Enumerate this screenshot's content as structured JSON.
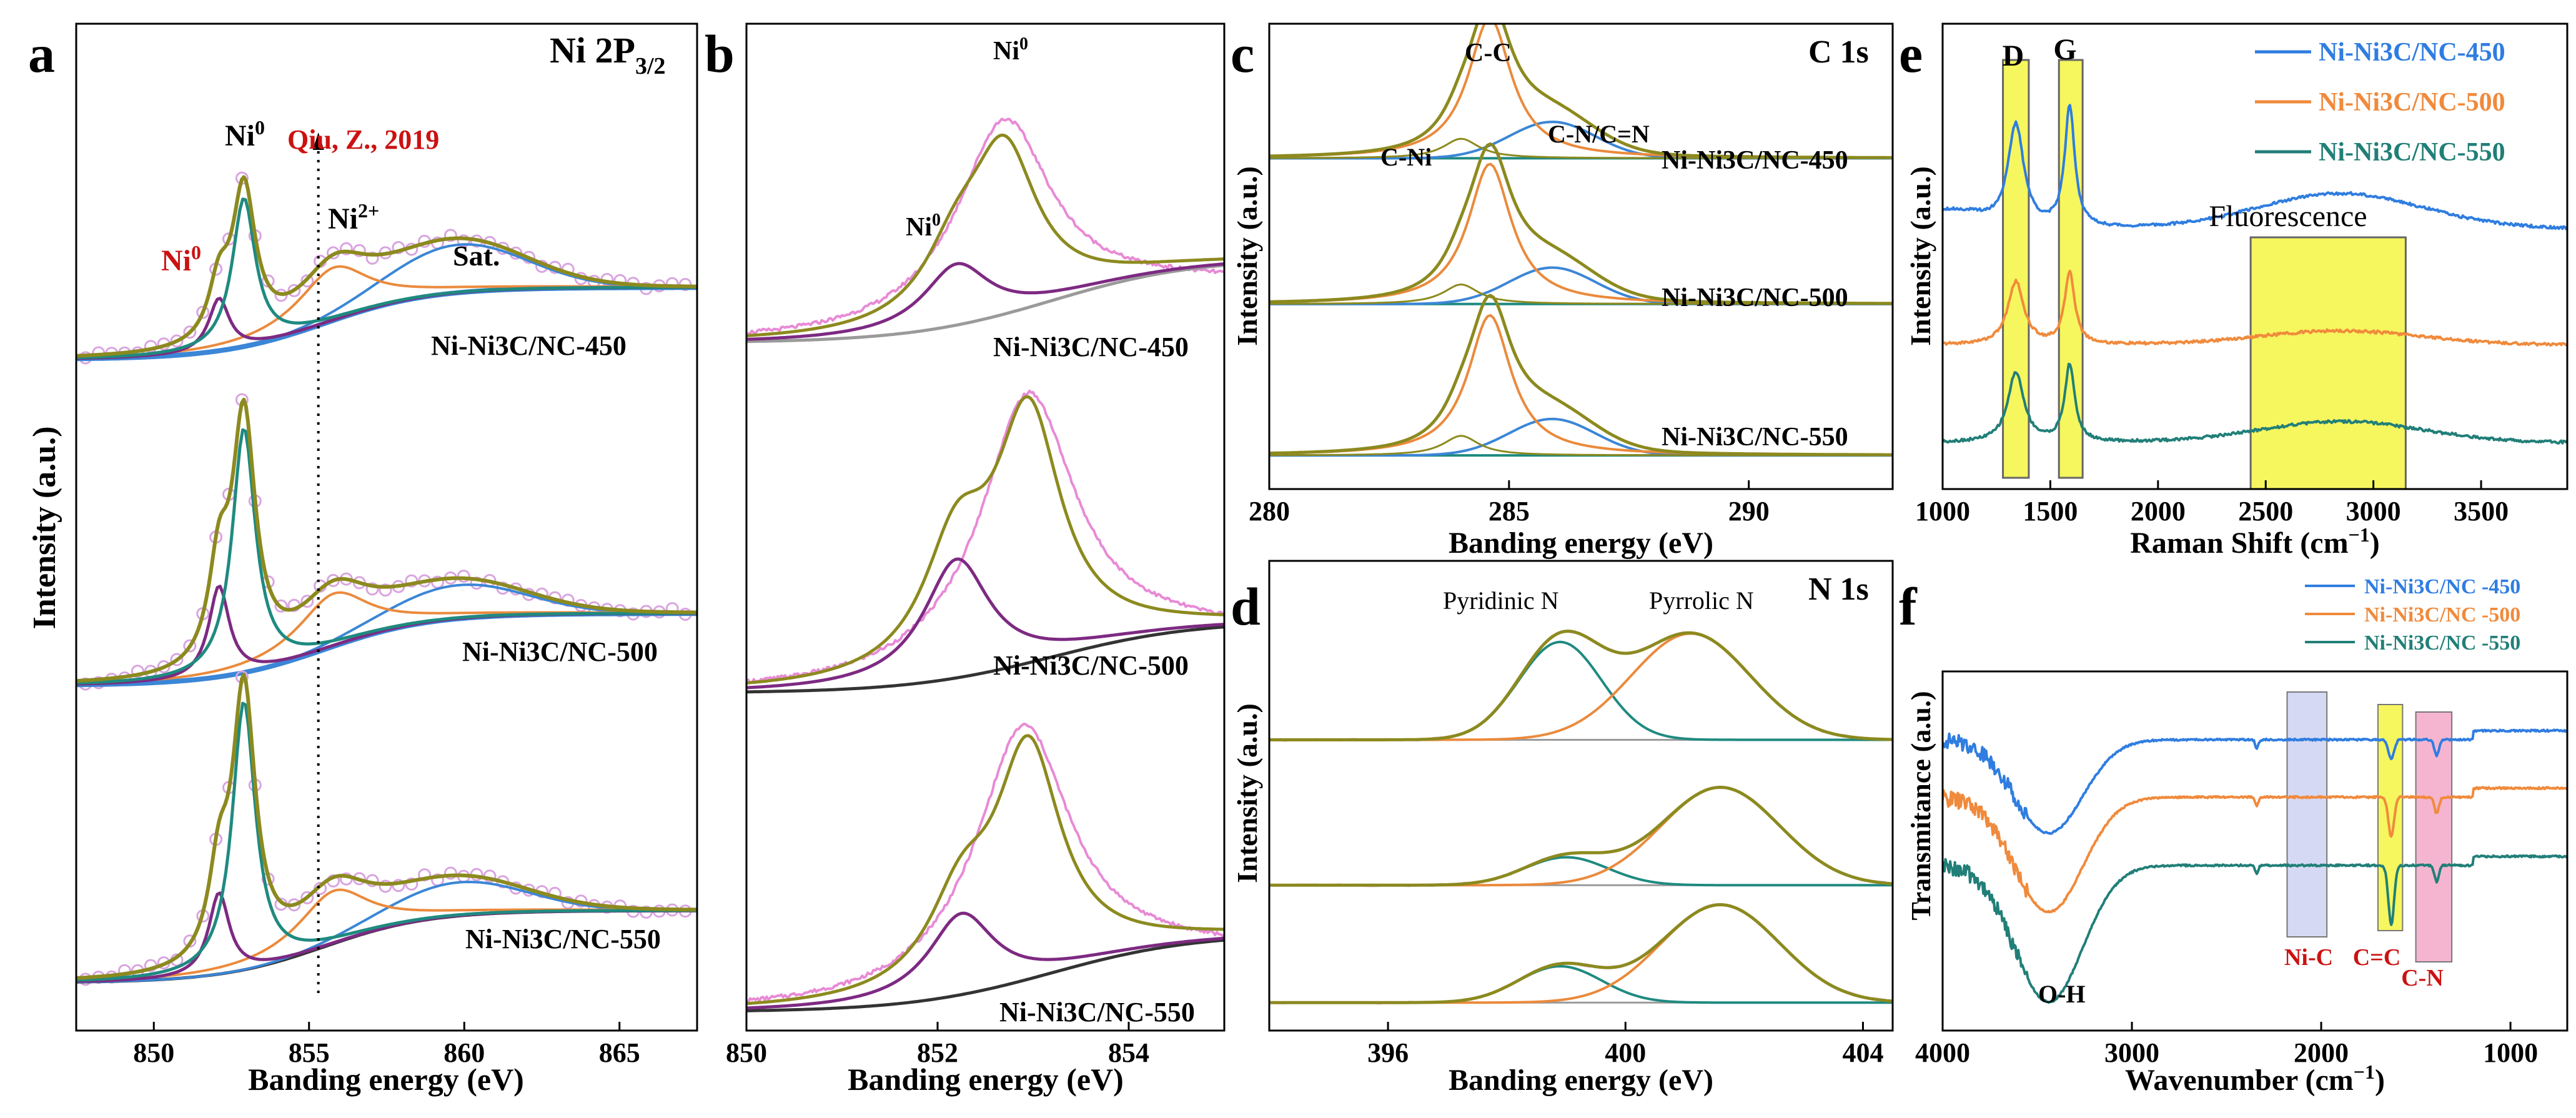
{
  "colors": {
    "olive": "#8c8a1f",
    "teal": "#1f8a80",
    "orange": "#ea8a3c",
    "purple": "#7d2a82",
    "blue": "#3b86d6",
    "pink": "#e88ad6",
    "dark": "#333333",
    "gray": "#9a9a9a",
    "fit_blue": "#2f7de0",
    "fit_orange": "#f08a3c",
    "fit_teal": "#217f78",
    "red": "#cc1111",
    "circle": "#d9a4e0",
    "yellow": "#f5f542",
    "lavender": "#cfd2f2",
    "pinkband": "#f3a8c8"
  },
  "chart_data": [
    {
      "panel": "a",
      "type": "line",
      "title": "Ni 2P",
      "title_sub": "3/2",
      "xlabel": "Banding energy (eV)",
      "ylabel": "Intensity (a.u.)",
      "xlim": [
        847.5,
        867.5
      ],
      "ylim": [
        0,
        10.5
      ],
      "xticks": [
        850,
        855,
        860,
        865
      ],
      "xtick_labels": [
        "850",
        "855",
        "860",
        "865"
      ],
      "reference": {
        "label": "Qiu, Z., 2019",
        "x": 855.3
      },
      "annotations": [
        "Ni",
        "Ni",
        "Ni",
        "Sat."
      ],
      "annotation_sups": [
        "0",
        "0",
        "2+"
      ],
      "samples": [
        {
          "name": "Ni-Ni3C/NC-450",
          "offset": 7.0,
          "ni0_main_amp": 1.55,
          "ni0_sub_amp": 0.55,
          "sat_amp": 0.5
        },
        {
          "name": "Ni-Ni3C/NC-500",
          "offset": 3.6,
          "ni0_main_amp": 2.55,
          "ni0_sub_amp": 0.95,
          "sat_amp": 0.35
        },
        {
          "name": "Ni-Ni3C/NC-550",
          "offset": 0.5,
          "ni0_main_amp": 2.8,
          "ni0_sub_amp": 0.85,
          "sat_amp": 0.35
        }
      ],
      "peaks_ev": {
        "ni0_main": 852.9,
        "ni0_sub": 852.1,
        "ni2": 855.8,
        "sat": 859.8
      }
    },
    {
      "panel": "b",
      "type": "line",
      "xlabel": "Banding energy (eV)",
      "xlim": [
        850,
        855
      ],
      "xticks": [
        850,
        852,
        854
      ],
      "xtick_labels": [
        "850",
        "852",
        "854"
      ],
      "annotations": [
        "Ni",
        "Ni"
      ],
      "annotation_sups": [
        "0",
        "0"
      ],
      "samples": [
        {
          "name": "Ni-Ni3C/NC-450",
          "main_peak_ev": 852.7,
          "sub_peak_ev": 852.2
        },
        {
          "name": "Ni-Ni3C/NC-500",
          "main_peak_ev": 852.95,
          "sub_peak_ev": 852.2
        },
        {
          "name": "Ni-Ni3C/NC-550",
          "main_peak_ev": 852.95,
          "sub_peak_ev": 852.25
        }
      ]
    },
    {
      "panel": "c",
      "type": "line",
      "title": "C 1s",
      "xlabel": "Banding energy (eV)",
      "ylabel": "Intensity (a.u.)",
      "xlim": [
        280,
        293
      ],
      "xticks": [
        280,
        285,
        290
      ],
      "xtick_labels": [
        "280",
        "285",
        "290"
      ],
      "annotations": [
        "C-C",
        "C-Ni",
        "C-N/C=N"
      ],
      "samples": [
        {
          "name": "Ni-Ni3C/NC-450"
        },
        {
          "name": "Ni-Ni3C/NC-500"
        },
        {
          "name": "Ni-Ni3C/NC-550"
        }
      ],
      "peaks_ev": {
        "c_ni": 284.0,
        "c_c": 284.6,
        "c_n": 285.9
      }
    },
    {
      "panel": "d",
      "type": "line",
      "title": "N 1s",
      "xlabel": "Banding energy (eV)",
      "ylabel": "Intensity (a.u.)",
      "xlim": [
        394,
        404.5
      ],
      "xticks": [
        396,
        400,
        404
      ],
      "xtick_labels": [
        "396",
        "400",
        "404"
      ],
      "annotations": [
        "Pyridinic N",
        "Pyrrolic N"
      ],
      "peaks_ev": {
        "pyridinic": 398.9,
        "pyrrolic": 401.1
      }
    },
    {
      "panel": "e",
      "type": "line",
      "xlabel": "Raman Shift (cm",
      "xlabel_sup": "−1",
      "xlabel_end": ")",
      "ylabel": "Intensity (a.u.)",
      "xlim": [
        1000,
        3900
      ],
      "xticks": [
        1000,
        1500,
        2000,
        2500,
        3000,
        3500
      ],
      "xtick_labels": [
        "1000",
        "1500",
        "2000",
        "2500",
        "3000",
        "3500"
      ],
      "bands": [
        {
          "label": "D",
          "range": [
            1280,
            1400
          ]
        },
        {
          "label": "G",
          "range": [
            1540,
            1650
          ]
        },
        {
          "label": "Fluorescence",
          "range": [
            2430,
            3150
          ]
        }
      ],
      "series": [
        {
          "name": "Ni-Ni3C/NC-450",
          "d_peak": 1340,
          "g_peak": 1590
        },
        {
          "name": "Ni-Ni3C/NC-500",
          "d_peak": 1340,
          "g_peak": 1590
        },
        {
          "name": "Ni-Ni3C/NC-550",
          "d_peak": 1340,
          "g_peak": 1590
        }
      ]
    },
    {
      "panel": "f",
      "type": "line",
      "xlabel": "Wavenumber (cm",
      "xlabel_sup": "−1",
      "xlabel_end": ")",
      "ylabel": "Transmitance (a.u.)",
      "xlim": [
        4000,
        700
      ],
      "xticks": [
        4000,
        3000,
        2000,
        1000
      ],
      "xtick_labels": [
        "4000",
        "3000",
        "2000",
        "1000"
      ],
      "bands": [
        {
          "label": "Ni-C",
          "range": [
            2180,
            1970
          ]
        },
        {
          "label": "C=C",
          "range": [
            1700,
            1570
          ]
        },
        {
          "label": "C-N",
          "range": [
            1500,
            1310
          ]
        }
      ],
      "annotations": [
        "O-H"
      ],
      "series": [
        {
          "name": "Ni-Ni3C/NC -450"
        },
        {
          "name": "Ni-Ni3C/NC -500"
        },
        {
          "name": "Ni-Ni3C/NC -550"
        }
      ]
    }
  ]
}
